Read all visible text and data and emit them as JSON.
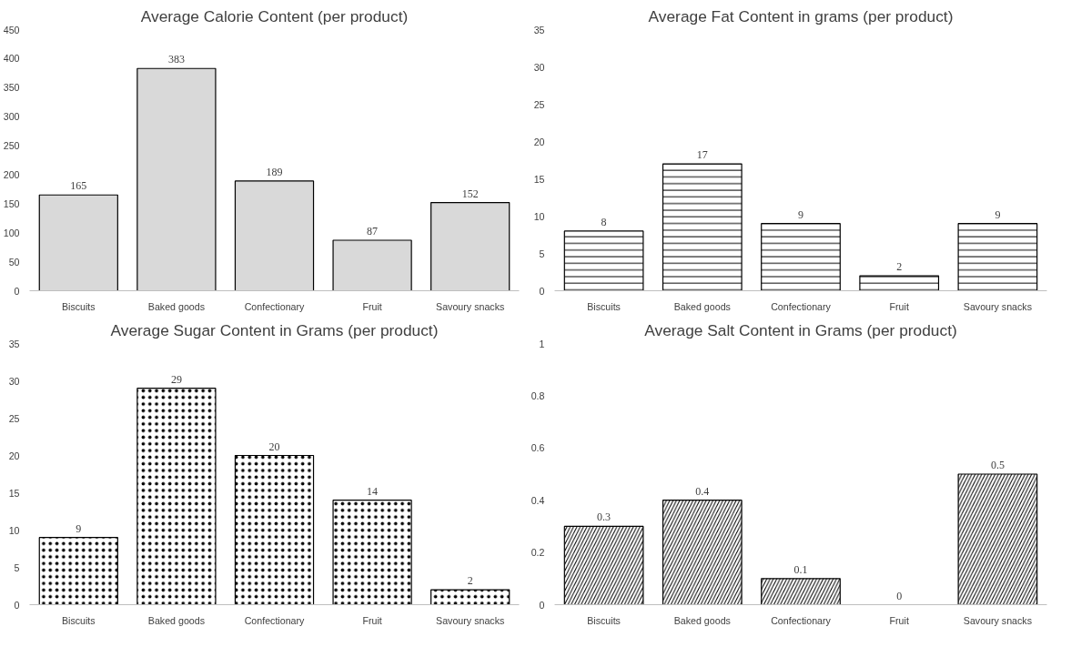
{
  "chart_data": [
    {
      "type": "bar",
      "title": "Average Calorie Content (per product)",
      "categories": [
        "Biscuits",
        "Baked goods",
        "Confectionary",
        "Fruit",
        "Savoury snacks"
      ],
      "values": [
        165,
        383,
        189,
        87,
        152
      ],
      "color": "#d9d9d9",
      "ylim": [
        0,
        450
      ],
      "yticks": [
        0,
        50,
        100,
        150,
        200,
        250,
        300,
        350,
        400,
        450
      ],
      "grid": false,
      "data_labels": true
    },
    {
      "type": "bar",
      "title": "Average Fat Content in grams (per product)",
      "categories": [
        "Biscuits",
        "Baked goods",
        "Confectionary",
        "Fruit",
        "Savoury snacks"
      ],
      "values": [
        8,
        17,
        9,
        2,
        9
      ],
      "color": "#ffffff",
      "ylim": [
        0,
        35
      ],
      "yticks": [
        0,
        5,
        10,
        15,
        20,
        25,
        30,
        35
      ],
      "grid": false,
      "data_labels": true
    },
    {
      "type": "bar",
      "title": "Average Sugar Content in Grams (per product)",
      "categories": [
        "Biscuits",
        "Baked goods",
        "Confectionary",
        "Fruit",
        "Savoury snacks"
      ],
      "values": [
        9,
        29,
        20,
        14,
        2
      ],
      "color": "#ffffff",
      "ylim": [
        0,
        35
      ],
      "yticks": [
        0,
        5,
        10,
        15,
        20,
        25,
        30,
        35
      ],
      "grid": false,
      "data_labels": true
    },
    {
      "type": "bar",
      "title": "Average Salt Content in Grams (per product)",
      "categories": [
        "Biscuits",
        "Baked goods",
        "Confectionary",
        "Fruit",
        "Savoury snacks"
      ],
      "values": [
        0.3,
        0.4,
        0.1,
        0,
        0.5
      ],
      "color": "#ffffff",
      "ylim": [
        0,
        1
      ],
      "yticks": [
        0,
        0.2,
        0.4,
        0.6,
        0.8,
        1
      ],
      "grid": false,
      "data_labels": true
    }
  ]
}
